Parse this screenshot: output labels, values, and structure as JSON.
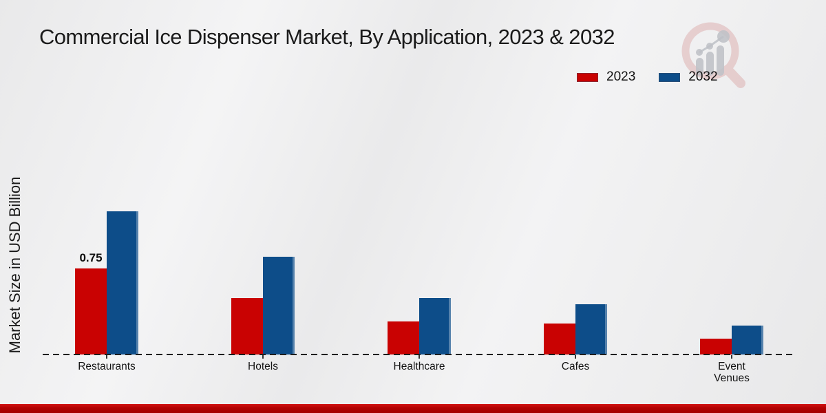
{
  "page": {
    "title": "Commercial Ice Dispenser Market, By Application, 2023 & 2032",
    "ylabel": "Market Size in USD Billion"
  },
  "legend": {
    "items": [
      {
        "label": "2023",
        "color": "#c90202"
      },
      {
        "label": "2032",
        "color": "#0d4d89"
      }
    ]
  },
  "chart_data": {
    "type": "bar",
    "title": "Commercial Ice Dispenser Market, By Application, 2023 & 2032",
    "ylabel": "Market Size in USD Billion",
    "xlabel": "",
    "categories": [
      "Restaurants",
      "Hotels",
      "Healthcare",
      "Cafes",
      "Event Venues"
    ],
    "series": [
      {
        "name": "2023",
        "color": "#c90202",
        "values": [
          0.75,
          0.49,
          0.29,
          0.27,
          0.14
        ]
      },
      {
        "name": "2032",
        "color": "#0d4d89",
        "values": [
          1.25,
          0.85,
          0.49,
          0.44,
          0.25
        ]
      }
    ],
    "bar_labels": [
      {
        "category": "Restaurants",
        "series": "2023",
        "text": "0.75"
      }
    ],
    "ylim": [
      0,
      1.35
    ],
    "grid": false,
    "baseline_style": "dashed",
    "legend_position": "top-right",
    "accent_colors": {
      "footer_bar": "#b20202"
    }
  }
}
